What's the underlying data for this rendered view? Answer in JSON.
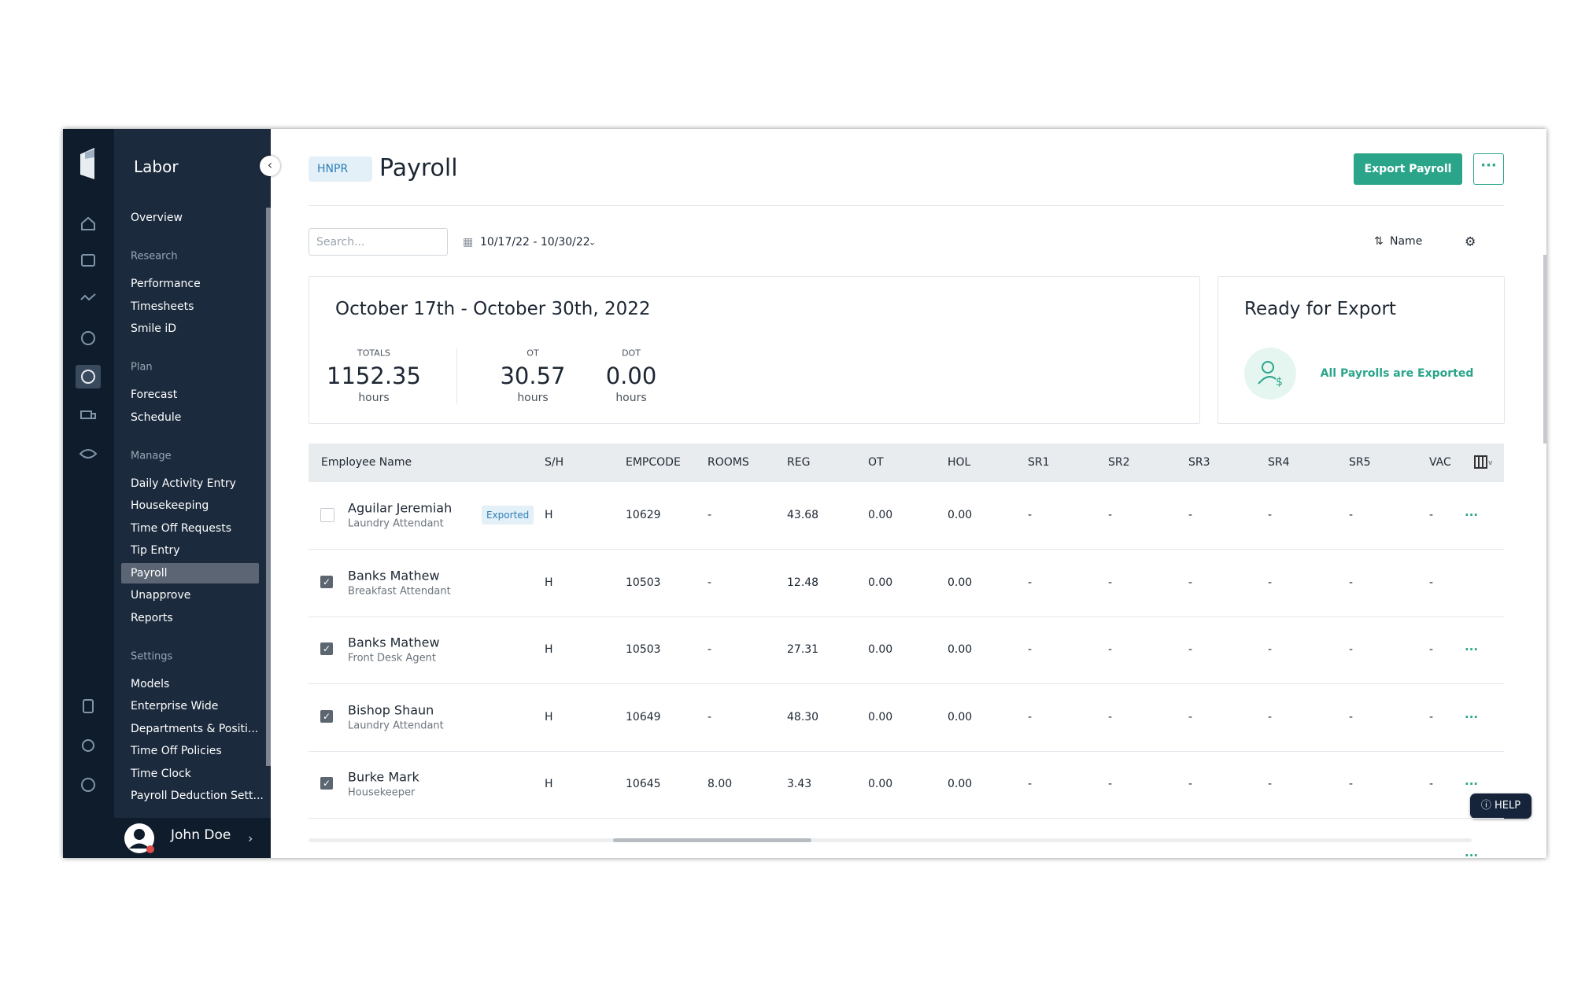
{
  "sidebar": {
    "app": "Labor",
    "top_item": "Overview",
    "sections": [
      {
        "title": "Research",
        "items": [
          "Performance",
          "Timesheets",
          "Smile iD"
        ]
      },
      {
        "title": "Plan",
        "items": [
          "Forecast",
          "Schedule"
        ]
      },
      {
        "title": "Manage",
        "items": [
          "Daily Activity Entry",
          "Housekeeping",
          "Time Off Requests",
          "Tip Entry",
          "Payroll",
          "Unapprove",
          "Reports"
        ]
      },
      {
        "title": "Settings",
        "items": [
          "Models",
          "Enterprise Wide",
          "Departments & Positi...",
          "Time Off Policies",
          "Time Clock",
          "Payroll Deduction Sett..."
        ]
      }
    ],
    "active": "Payroll",
    "user": "John Doe"
  },
  "header": {
    "property": "HNPR",
    "title": "Payroll",
    "export_button": "Export Payroll"
  },
  "toolbar": {
    "search_placeholder": "Search...",
    "date_range": "10/17/22 - 10/30/22",
    "sort": "Name"
  },
  "summary": {
    "title": "October 17th - October 30th, 2022",
    "stats": [
      {
        "label": "TOTALS",
        "value": "1152.35",
        "unit": "hours"
      },
      {
        "label": "OT",
        "value": "30.57",
        "unit": "hours"
      },
      {
        "label": "DOT",
        "value": "0.00",
        "unit": "hours"
      }
    ]
  },
  "export_card": {
    "title": "Ready for Export",
    "status": "All Payrolls are Exported"
  },
  "table": {
    "columns": [
      "Employee Name",
      "S/H",
      "EMPCODE",
      "ROOMS",
      "REG",
      "OT",
      "HOL",
      "SR1",
      "SR2",
      "SR3",
      "SR4",
      "SR5",
      "VAC"
    ],
    "rows": [
      {
        "name": "Aguilar Jeremiah",
        "role": "Laundry Attendant",
        "badge": "Exported",
        "checked": false,
        "cells": [
          "H",
          "10629",
          "-",
          "43.68",
          "0.00",
          "0.00",
          "-",
          "-",
          "-",
          "-",
          "-",
          "-"
        ]
      },
      {
        "name": "Banks Mathew",
        "role": "Breakfast Attendant",
        "checked": true,
        "cells": [
          "H",
          "10503",
          "-",
          "12.48",
          "0.00",
          "0.00",
          "-",
          "-",
          "-",
          "-",
          "-",
          "-"
        ]
      },
      {
        "name": "Banks Mathew",
        "role": "Front Desk Agent",
        "checked": true,
        "cells": [
          "H",
          "10503",
          "-",
          "27.31",
          "0.00",
          "0.00",
          "-",
          "-",
          "-",
          "-",
          "-",
          "-"
        ]
      },
      {
        "name": "Bishop Shaun",
        "role": "Laundry Attendant",
        "checked": true,
        "cells": [
          "H",
          "10649",
          "-",
          "48.30",
          "0.00",
          "0.00",
          "-",
          "-",
          "-",
          "-",
          "-",
          "-"
        ]
      },
      {
        "name": "Burke Mark",
        "role": "Housekeeper",
        "checked": true,
        "cells": [
          "H",
          "10645",
          "8.00",
          "3.43",
          "0.00",
          "0.00",
          "-",
          "-",
          "-",
          "-",
          "-",
          "-"
        ]
      }
    ]
  },
  "help": "HELP"
}
